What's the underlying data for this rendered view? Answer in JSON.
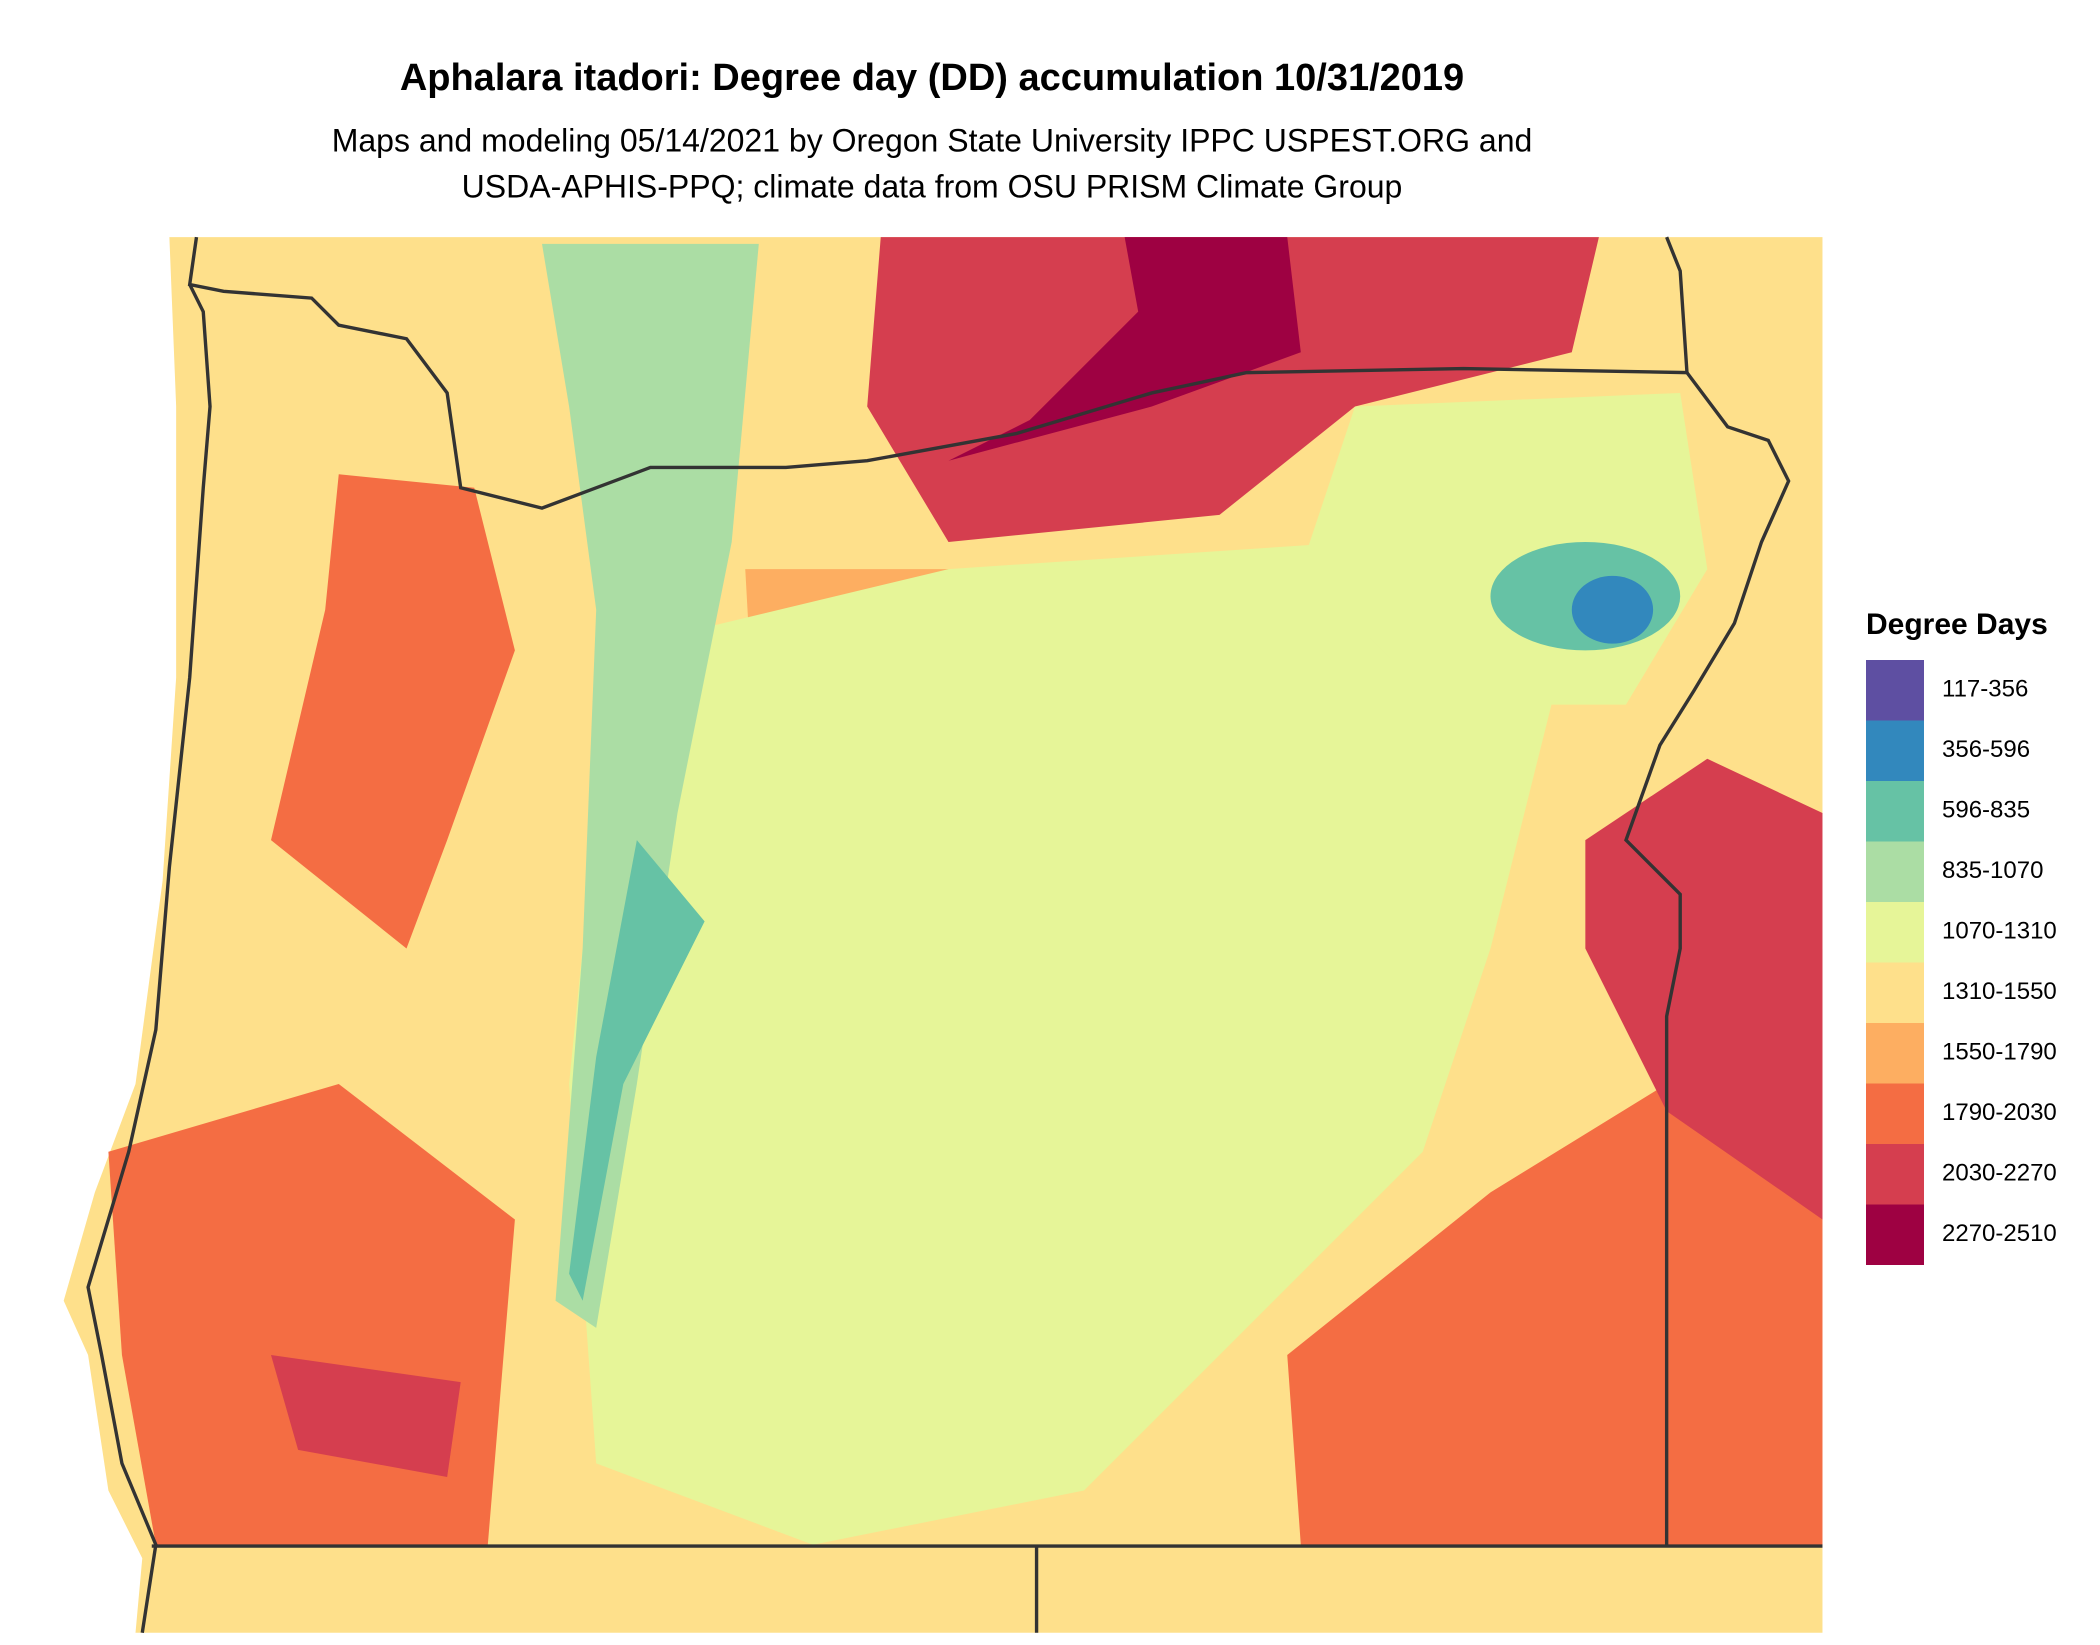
{
  "title": "Aphalara itadori: Degree day (DD) accumulation 10/31/2019",
  "subtitle": [
    "Maps and modeling 05/14/2021 by Oregon State University IPPC USPEST.ORG and",
    "USDA-APHIS-PPQ; climate data from OSU PRISM Climate Group"
  ],
  "legend": {
    "title": "Degree Days",
    "items": [
      {
        "label": "117-356",
        "color": "#5e4fa2"
      },
      {
        "label": "356-596",
        "color": "#3288bd"
      },
      {
        "label": "596-835",
        "color": "#66c2a5"
      },
      {
        "label": "835-1070",
        "color": "#abdda4"
      },
      {
        "label": "1070-1310",
        "color": "#e6f598"
      },
      {
        "label": "1310-1550",
        "color": "#fee08b"
      },
      {
        "label": "1550-1790",
        "color": "#fdae61"
      },
      {
        "label": "1790-2030",
        "color": "#f46d43"
      },
      {
        "label": "2030-2270",
        "color": "#d53e4f"
      },
      {
        "label": "2270-2510",
        "color": "#9e0142"
      }
    ]
  }
}
